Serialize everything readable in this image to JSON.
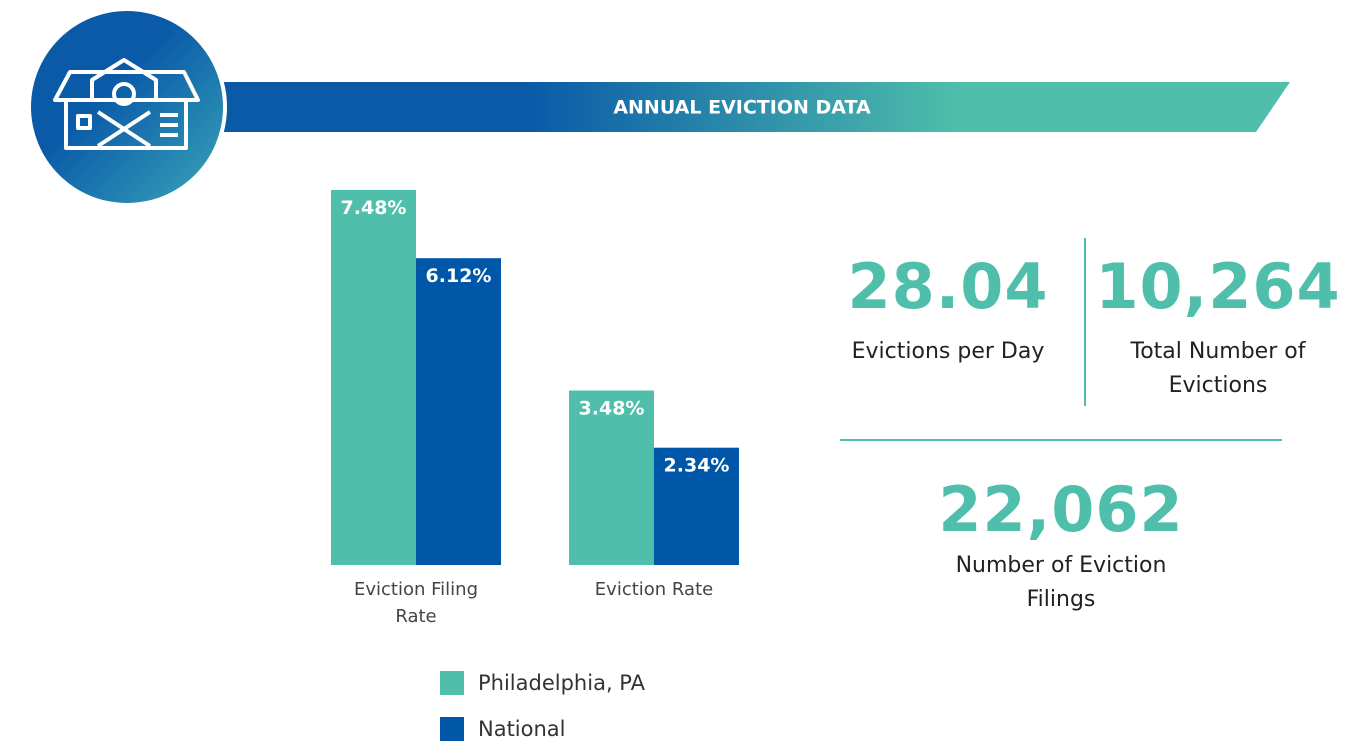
{
  "chart_data": {
    "type": "bar",
    "title": "ANNUAL EVICTION DATA",
    "categories": [
      "Eviction Filing Rate",
      "Eviction Rate"
    ],
    "series": [
      {
        "name": "Philadelphia, PA",
        "color": "#4fbfab",
        "values": [
          7.48,
          3.48
        ],
        "value_labels": [
          "7.48%",
          "3.48%"
        ]
      },
      {
        "name": "National",
        "color": "#0057a8",
        "values": [
          6.12,
          2.34
        ],
        "value_labels": [
          "6.12%",
          "2.34%"
        ]
      }
    ],
    "ylim": [
      0,
      7.5
    ]
  },
  "stats": [
    {
      "value": "28.04",
      "label": "Evictions per Day"
    },
    {
      "value": "10,264",
      "label": "Total Number of Evictions"
    },
    {
      "value": "22,062",
      "label": "Number of Eviction Filings"
    }
  ]
}
